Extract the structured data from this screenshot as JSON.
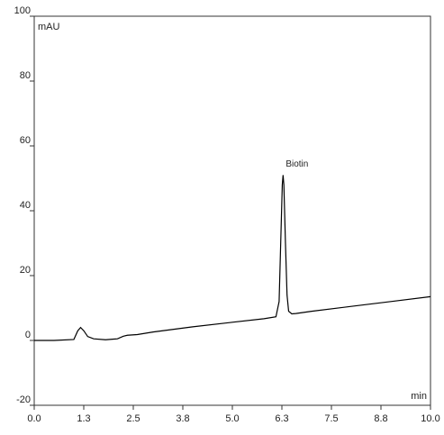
{
  "chart_data": {
    "type": "line",
    "y_label": "mAU",
    "x_label": "min",
    "annotations": [
      {
        "text": "Biotin",
        "x": 6.28,
        "y": 51
      }
    ],
    "x": [
      0,
      0.5,
      1.0,
      1.1,
      1.17,
      1.25,
      1.35,
      1.5,
      1.8,
      2.1,
      2.25,
      2.35,
      2.6,
      3.0,
      4.0,
      5.0,
      5.8,
      6.1,
      6.18,
      6.22,
      6.26,
      6.28,
      6.3,
      6.34,
      6.38,
      6.42,
      6.5,
      6.6,
      7.0,
      8.0,
      9.0,
      10.0
    ],
    "series": [
      {
        "color": "#000000",
        "values": [
          0,
          0,
          0.3,
          3,
          4,
          3,
          1.2,
          0.5,
          0.2,
          0.5,
          1.3,
          1.6,
          1.8,
          2.6,
          4.2,
          5.6,
          6.7,
          7.3,
          12,
          30,
          48,
          51,
          48,
          30,
          14,
          9,
          8.2,
          8.3,
          9,
          10.5,
          12,
          13.5
        ]
      }
    ],
    "xlim": [
      0,
      10
    ],
    "ylim": [
      -20,
      100
    ],
    "xticks": [
      {
        "value": 0,
        "label": "0.0"
      },
      {
        "value": 1.25,
        "label": "1.3"
      },
      {
        "value": 2.5,
        "label": "2.5"
      },
      {
        "value": 3.75,
        "label": "3.8"
      },
      {
        "value": 5,
        "label": "5.0"
      },
      {
        "value": 6.25,
        "label": "6.3"
      },
      {
        "value": 7.5,
        "label": "7.5"
      },
      {
        "value": 8.75,
        "label": "8.8"
      },
      {
        "value": 10,
        "label": "10.0"
      }
    ],
    "yticks": [
      -20,
      0,
      20,
      40,
      60,
      80,
      100
    ]
  }
}
